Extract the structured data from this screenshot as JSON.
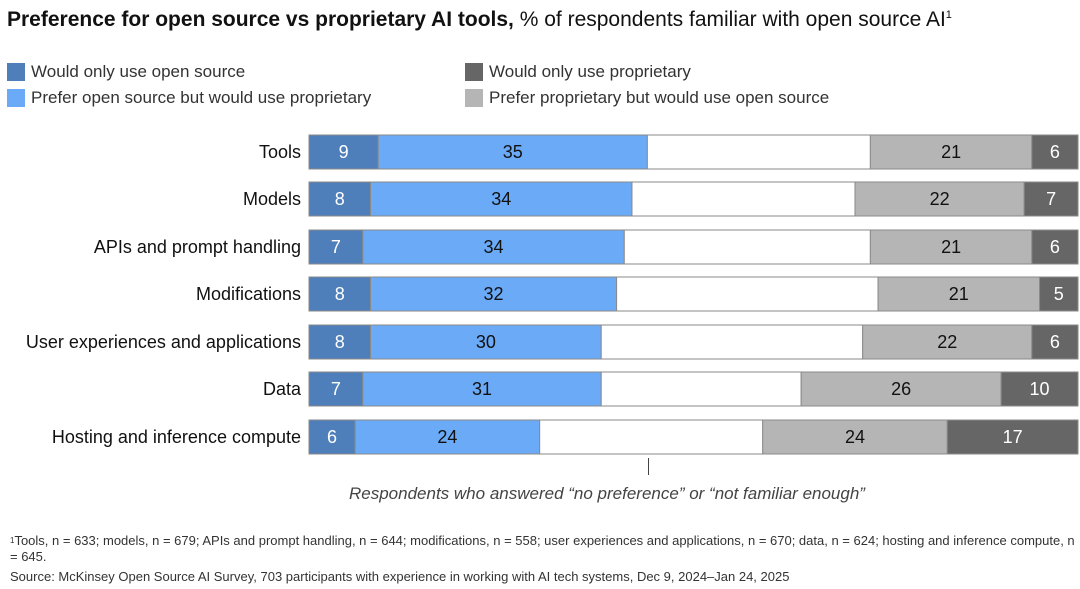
{
  "title": {
    "bold": "Preference for open source vs proprietary AI tools,",
    "rest": "% of respondents familiar with open source AI",
    "sup": "1"
  },
  "colors": {
    "only_open": "#4f7fbb",
    "prefer_open": "#6aaaf7",
    "no_pref": "#ffffff",
    "prefer_prop": "#b5b5b5",
    "only_prop": "#666666",
    "border": "#8a8a8a"
  },
  "legend": [
    {
      "label": "Would only use open source",
      "color": "#4f7fbb"
    },
    {
      "label": "Prefer open source but would use proprietary",
      "color": "#6aaaf7"
    },
    {
      "label": "Would only use proprietary",
      "color": "#666666"
    },
    {
      "label": "Prefer proprietary but would use open source",
      "color": "#b5b5b5"
    }
  ],
  "chart_data": {
    "type": "bar",
    "orientation": "horizontal",
    "stacked": true,
    "categories": [
      "Tools",
      "Models",
      "APIs and prompt handling",
      "Modifications",
      "User experiences and applications",
      "Data",
      "Hosting and inference compute"
    ],
    "series": [
      {
        "name": "Would only use open source",
        "values": [
          9,
          8,
          7,
          8,
          8,
          7,
          6
        ]
      },
      {
        "name": "Prefer open source but would use proprietary",
        "values": [
          35,
          34,
          34,
          32,
          30,
          31,
          24
        ]
      },
      {
        "name": "Prefer proprietary but would use open source",
        "values": [
          21,
          22,
          21,
          21,
          22,
          26,
          24
        ]
      },
      {
        "name": "Would only use proprietary",
        "values": [
          6,
          7,
          6,
          5,
          6,
          10,
          17
        ]
      }
    ],
    "annotation": "Respondents who answered “no preference” or “not familiar enough”",
    "xlim": [
      0,
      100
    ]
  },
  "footnote": {
    "sup": "1",
    "text": "Tools, n = 633; models, n = 679; APIs and prompt handling, n = 644; modifications, n = 558; user experiences and applications, n = 670; data, n = 624; hosting and inference compute, n = 645.",
    "source": "Source: McKinsey Open Source AI Survey, 703 participants with experience in working with AI tech systems, Dec 9, 2024–Jan 24, 2025"
  }
}
